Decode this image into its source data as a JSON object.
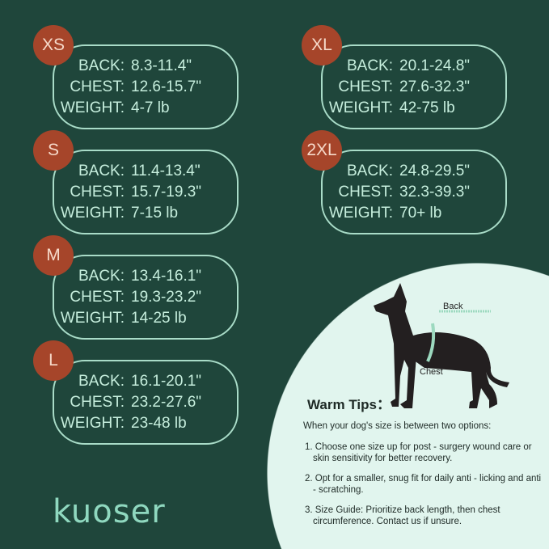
{
  "sizes": [
    {
      "size": "XS",
      "back": "8.3-11.4\"",
      "chest": "12.6-15.7\"",
      "weight": "4-7 lb"
    },
    {
      "size": "S",
      "back": "11.4-13.4\"",
      "chest": "15.7-19.3\"",
      "weight": "7-15 lb"
    },
    {
      "size": "M",
      "back": "13.4-16.1\"",
      "chest": "19.3-23.2\"",
      "weight": "14-25 lb"
    },
    {
      "size": "L",
      "back": "16.1-20.1\"",
      "chest": "23.2-27.6\"",
      "weight": "23-48 lb"
    },
    {
      "size": "XL",
      "back": "20.1-24.8\"",
      "chest": "27.6-32.3\"",
      "weight": "42-75 lb"
    },
    {
      "size": "2XL",
      "back": "24.8-29.5\"",
      "chest": "32.3-39.3\"",
      "weight": "70+ lb"
    }
  ],
  "labels": {
    "back": "BACK:",
    "chest": "CHEST:",
    "weight": "WEIGHT:"
  },
  "diagram": {
    "back": "Back",
    "chest": "Chest"
  },
  "tips": {
    "title": "Warm Tips：",
    "intro": "When your dog's size is between two options:",
    "items": [
      "1. Choose one size up for post - surgery wound care or skin sensitivity for better recovery.",
      "2. Opt for a smaller, snug fit for daily anti - licking and anti - scratching.",
      "3. Size Guide: Prioritize back length, then chest circumference. Contact us if unsure."
    ]
  },
  "brand": "kuoser",
  "colors": {
    "background": "#1f463b",
    "badge": "#a6452a",
    "text": "#c6eedd",
    "panel": "#e1f5ee",
    "logo": "#8fd8bf"
  }
}
